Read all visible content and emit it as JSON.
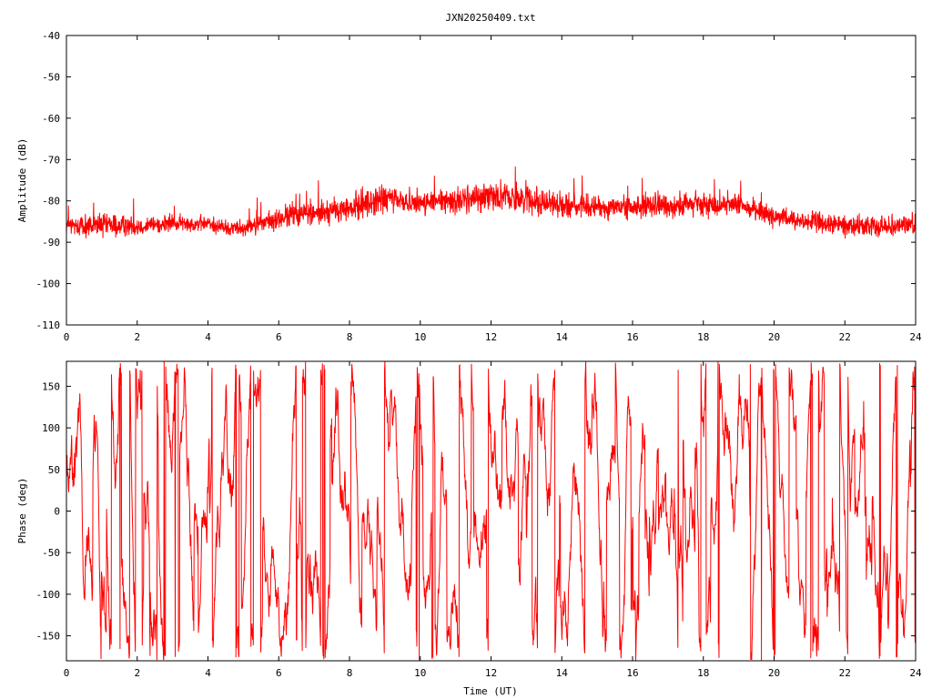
{
  "title": "JXN20250409.txt",
  "colors": {
    "series": "#ff0000",
    "axes": "#000000",
    "background": "#ffffff"
  },
  "chart_data": [
    {
      "type": "line",
      "title": "JXN20250409.txt",
      "xlabel": "",
      "ylabel": "Amplitude (dB)",
      "xlim": [
        0,
        24
      ],
      "ylim": [
        -110,
        -40
      ],
      "grid": false,
      "xticks": [
        "0",
        "2",
        "4",
        "6",
        "8",
        "10",
        "12",
        "14",
        "16",
        "18",
        "20",
        "22",
        "24"
      ],
      "yticks": [
        "-40",
        "-50",
        "-60",
        "-70",
        "-80",
        "-90",
        "-100",
        "-110"
      ],
      "series": [
        {
          "color": "#ff0000",
          "envelope_x": [
            0,
            1,
            2,
            3,
            4,
            4.5,
            5,
            6,
            6.5,
            7,
            8,
            8.5,
            9,
            10,
            11,
            12,
            13,
            14,
            15,
            16,
            17,
            18,
            19,
            19.5,
            20,
            21,
            22,
            23,
            24
          ],
          "envelope_min": [
            -89,
            -90,
            -89,
            -88,
            -88,
            -89,
            -89,
            -88,
            -87,
            -87,
            -86,
            -85,
            -84,
            -84,
            -84,
            -83,
            -84,
            -85,
            -85,
            -85,
            -85,
            -85,
            -84,
            -85,
            -87,
            -88,
            -89,
            -89,
            -89
          ],
          "envelope_max": [
            -83,
            -82,
            -83,
            -83,
            -83,
            -84,
            -84,
            -81,
            -79,
            -79,
            -78,
            -76,
            -75,
            -77,
            -76,
            -74,
            -75,
            -77,
            -78,
            -78,
            -77,
            -77,
            -78,
            -79,
            -81,
            -82,
            -83,
            -83,
            -82
          ]
        }
      ]
    },
    {
      "type": "line",
      "title": "",
      "xlabel": "Time (UT)",
      "ylabel": "Phase (deg)",
      "xlim": [
        0,
        24
      ],
      "ylim": [
        -180,
        180
      ],
      "grid": false,
      "xticks": [
        "0",
        "2",
        "4",
        "6",
        "8",
        "10",
        "12",
        "14",
        "16",
        "18",
        "20",
        "22",
        "24"
      ],
      "yticks": [
        "150",
        "100",
        "50",
        "0",
        "-50",
        "-100",
        "-150"
      ],
      "series": [
        {
          "color": "#ff0000",
          "note_range": [
            -180,
            180
          ]
        }
      ]
    }
  ]
}
